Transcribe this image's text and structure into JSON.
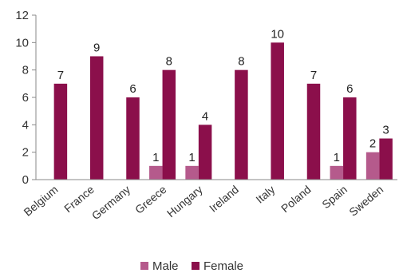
{
  "chart_data": {
    "type": "bar",
    "categories": [
      "Belgium",
      "France",
      "Germany",
      "Greece",
      "Hungary",
      "Ireland",
      "Italy",
      "Poland",
      "Spain",
      "Sweden"
    ],
    "series": [
      {
        "name": "Male",
        "color": "#b55a8c",
        "values": [
          null,
          null,
          null,
          1,
          1,
          null,
          null,
          null,
          1,
          2
        ]
      },
      {
        "name": "Female",
        "color": "#8b0f4b",
        "values": [
          7,
          9,
          6,
          8,
          4,
          8,
          10,
          7,
          6,
          3
        ]
      }
    ],
    "ylim": [
      0,
      12
    ],
    "yticks": [
      0,
      2,
      4,
      6,
      8,
      10,
      12
    ],
    "grid": false,
    "legend_position": "bottom",
    "title": "",
    "xlabel": "",
    "ylabel": ""
  }
}
